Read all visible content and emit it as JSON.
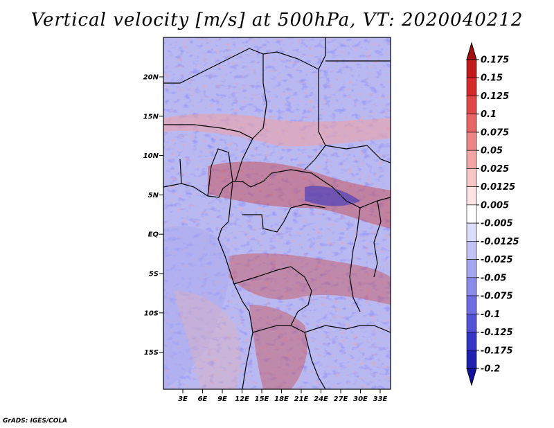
{
  "title": "Vertical velocity [m/s] at 500hPa, VT: 2020040212",
  "footer": "GrADS: IGES/COLA",
  "map": {
    "variable": "Vertical velocity",
    "units": "m/s",
    "level": "500hPa",
    "valid_time": "2020040212",
    "lat_labels": [
      "20N",
      "15N",
      "10N",
      "5N",
      "EQ",
      "5S",
      "10S",
      "15S"
    ],
    "lon_labels": [
      "3E",
      "6E",
      "9E",
      "12E",
      "15E",
      "18E",
      "21E",
      "24E",
      "27E",
      "30E",
      "33E"
    ]
  },
  "colorbar": {
    "levels": [
      "0.175",
      "0.15",
      "0.125",
      "0.1",
      "0.075",
      "0.05",
      "0.025",
      "0.0125",
      "0.005",
      "-0.005",
      "-0.0125",
      "-0.025",
      "-0.05",
      "-0.075",
      "-0.1",
      "-0.125",
      "-0.175",
      "-0.2"
    ],
    "colors": [
      "#a01010",
      "#c21a1a",
      "#d42a2a",
      "#e04848",
      "#e86565",
      "#ee8585",
      "#f4a5a5",
      "#f9c6c6",
      "#fde3e3",
      "#ffffff",
      "#dcdcfb",
      "#c2c2f6",
      "#a6a6f0",
      "#8a8aea",
      "#6e6ee2",
      "#5252d6",
      "#3636c6",
      "#2020b0",
      "#1212a0"
    ]
  }
}
